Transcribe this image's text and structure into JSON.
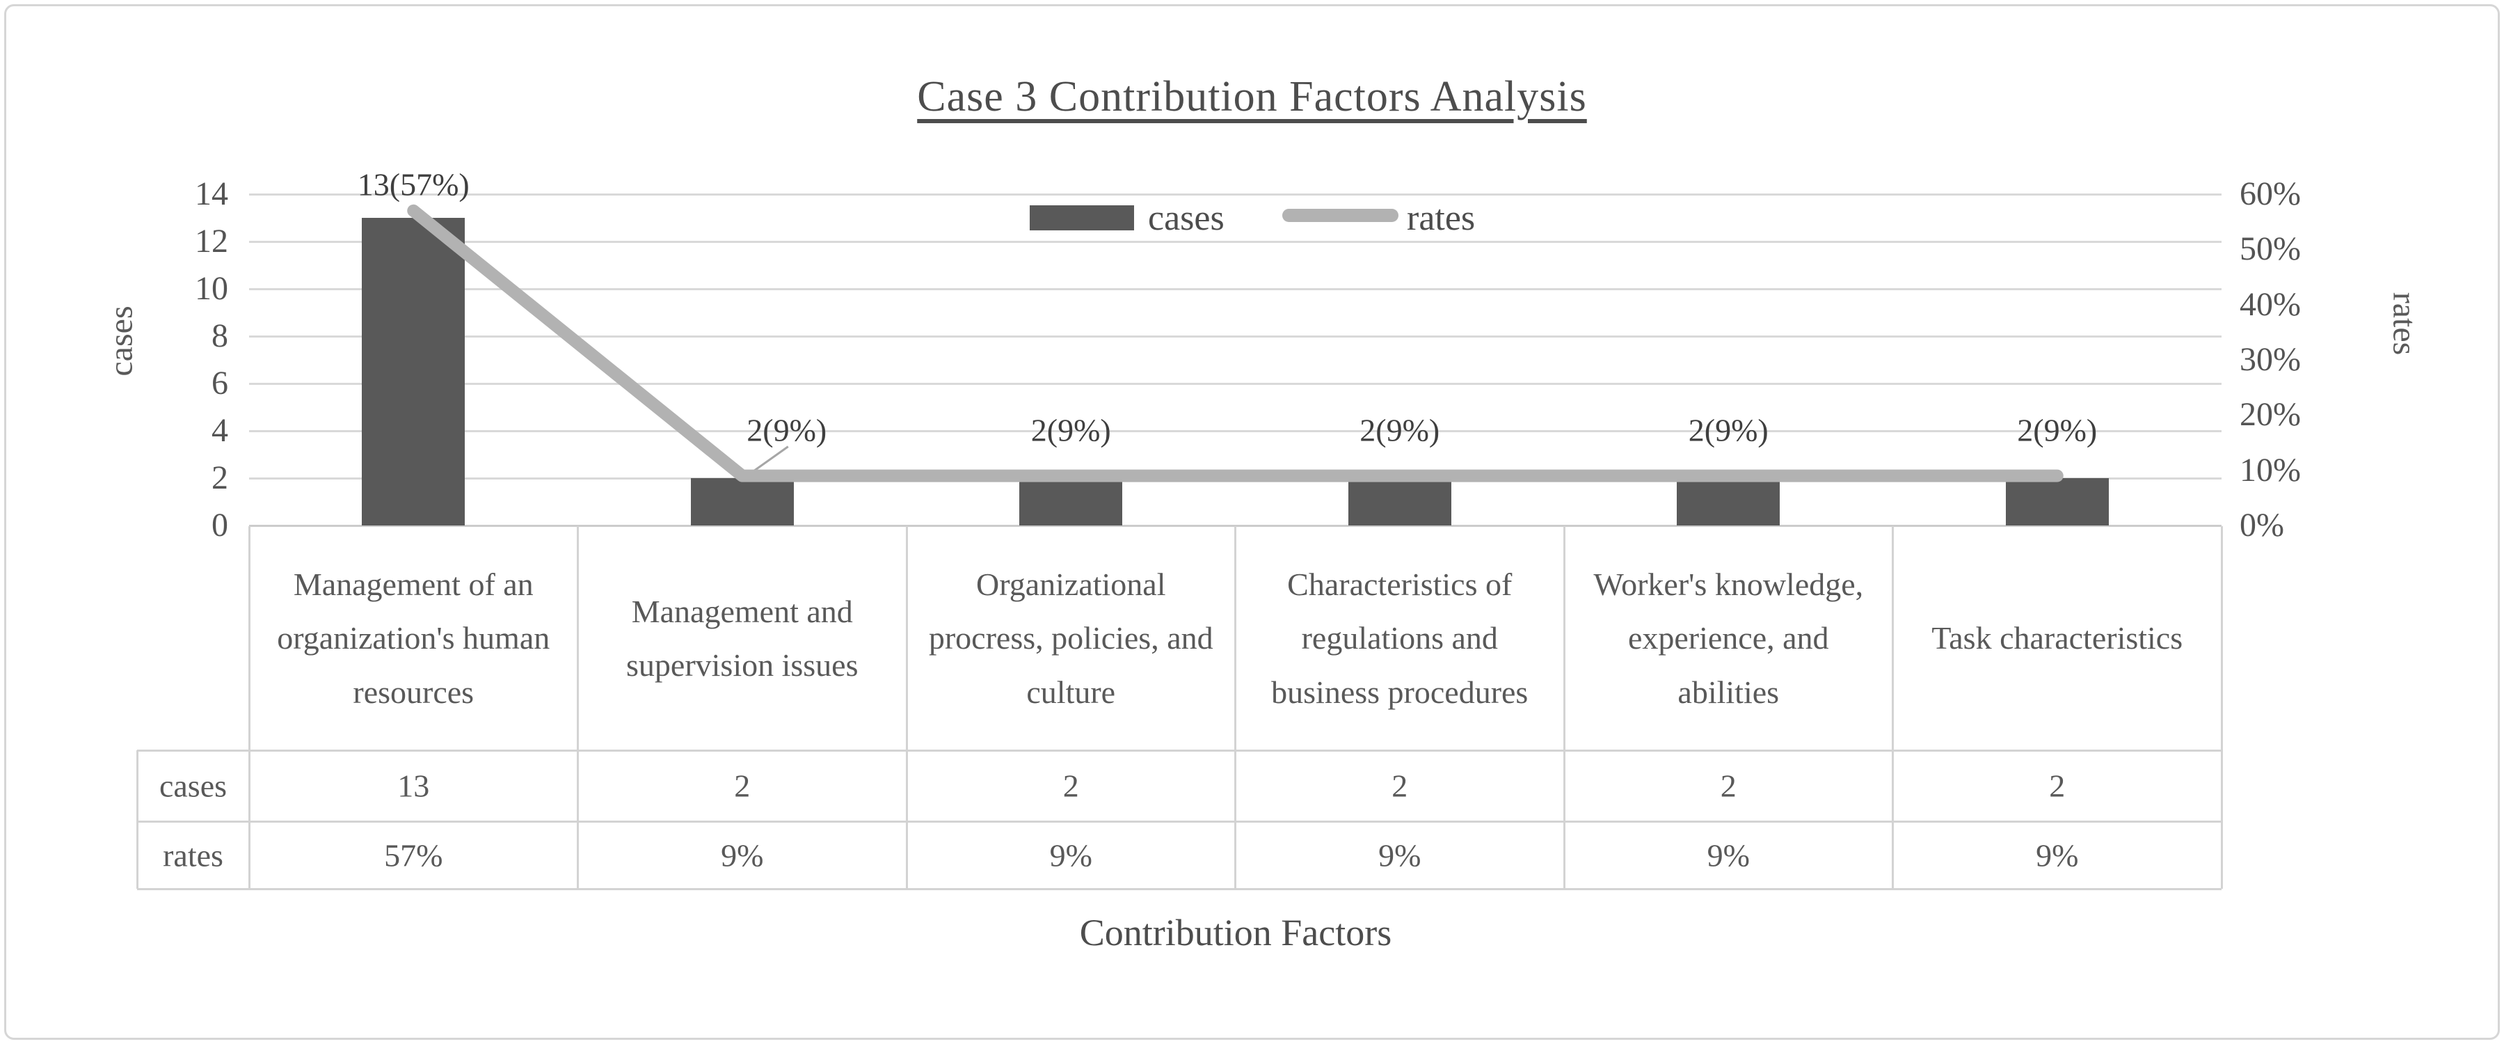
{
  "title": "Case 3 Contribution Factors Analysis",
  "legend": {
    "cases_label": "cases",
    "rates_label": "rates"
  },
  "axes": {
    "left_title": "cases",
    "right_title": "rates",
    "bottom_title": "Contribution Factors",
    "left_ticks": [
      "14",
      "12",
      "10",
      "8",
      "6",
      "4",
      "2",
      "0"
    ],
    "right_ticks": [
      "60%",
      "50%",
      "40%",
      "30%",
      "20%",
      "10%",
      "0%"
    ]
  },
  "chart_data": {
    "type": "bar+line",
    "title": "Case 3 Contribution Factors Analysis",
    "xlabel": "Contribution Factors",
    "ylabel_left": "cases",
    "ylabel_right": "rates",
    "categories": [
      "Management of an organization's human resources",
      "Management and supervision issues",
      "Organizational procress, policies, and culture",
      "Characteristics of regulations and business procedures",
      "Worker's knowledge, experience, and abilities",
      "Task characteristics"
    ],
    "series": [
      {
        "name": "cases",
        "type": "bar",
        "axis": "left",
        "values": [
          13,
          2,
          2,
          2,
          2,
          2
        ]
      },
      {
        "name": "rates",
        "type": "line",
        "axis": "right",
        "values_percent": [
          57,
          9,
          9,
          9,
          9,
          9
        ]
      }
    ],
    "data_labels": [
      "13(57%)",
      "2(9%)",
      "2(9%)",
      "2(9%)",
      "2(9%)",
      "2(9%)"
    ],
    "axis_left": {
      "min": 0,
      "max": 14,
      "step": 2
    },
    "axis_right": {
      "min": 0,
      "max": 60,
      "step": 10,
      "format": "percent"
    },
    "grid": "horizontal-major-left-axis",
    "legend_position": "top-inside",
    "callout_label_index": 1
  },
  "table": {
    "row_headers": [
      "cases",
      "rates"
    ],
    "rows": [
      [
        "13",
        "2",
        "2",
        "2",
        "2",
        "2"
      ],
      [
        "57%",
        "9%",
        "9%",
        "9%",
        "9%",
        "9%"
      ]
    ]
  },
  "colors": {
    "bar_fill": "#595959",
    "line_stroke": "#b2b2b2",
    "gridline": "#d9d9d9",
    "table_border": "#d3d3d3",
    "text": "#595959"
  }
}
